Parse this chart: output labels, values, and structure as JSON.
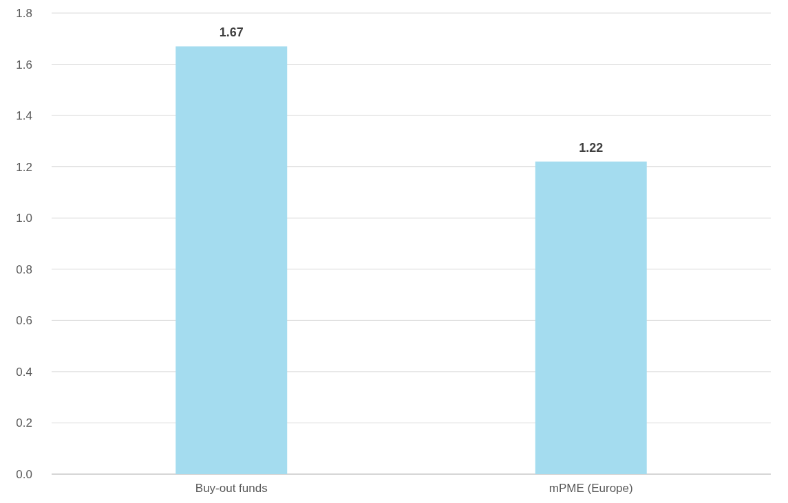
{
  "chart_data": {
    "type": "bar",
    "categories": [
      "Buy-out funds",
      "mPME (Europe)"
    ],
    "values": [
      1.67,
      1.22
    ],
    "color": "#a4dcef",
    "ylim": [
      0,
      1.8
    ],
    "yticks": [
      {
        "value": 0,
        "label": "0.0"
      },
      {
        "value": 0.2,
        "label": "0.2"
      },
      {
        "value": 0.4,
        "label": "0.4"
      },
      {
        "value": 0.6,
        "label": "0.6"
      },
      {
        "value": 0.8,
        "label": "0.8"
      },
      {
        "value": 1,
        "label": "1.0"
      },
      {
        "value": 1.2,
        "label": "1.2"
      },
      {
        "value": 1.4,
        "label": "1.4"
      },
      {
        "value": 1.6,
        "label": "1.6"
      },
      {
        "value": 1.8,
        "label": "1.8"
      }
    ],
    "grid": "y",
    "data_labels": true
  }
}
